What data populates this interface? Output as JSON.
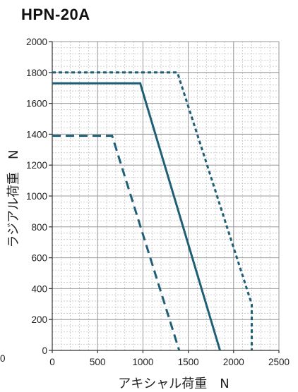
{
  "title": "HPN-20A",
  "stray_label": "0",
  "chart_data": {
    "type": "line",
    "title": "HPN-20A",
    "xlabel": "アキシャル荷重　N",
    "ylabel": "ラジアル荷重　N",
    "xlim": [
      0,
      2500
    ],
    "ylim": [
      0,
      2000
    ],
    "x_ticks": [
      0,
      500,
      1000,
      1500,
      2000,
      2500
    ],
    "y_ticks": [
      0,
      200,
      400,
      600,
      800,
      1000,
      1200,
      1400,
      1600,
      1800,
      2000
    ],
    "grid": true,
    "series": [
      {
        "style": "solid",
        "color": "#1f5f76",
        "x": [
          0,
          970,
          1850
        ],
        "y": [
          1730,
          1730,
          0
        ]
      },
      {
        "style": "dashed",
        "color": "#1f5f76",
        "x": [
          0,
          660,
          1400
        ],
        "y": [
          1390,
          1390,
          0
        ]
      },
      {
        "style": "dotted",
        "color": "#1f5f76",
        "x": [
          0,
          1380,
          2200,
          2200
        ],
        "y": [
          1800,
          1800,
          300,
          0
        ]
      }
    ]
  }
}
